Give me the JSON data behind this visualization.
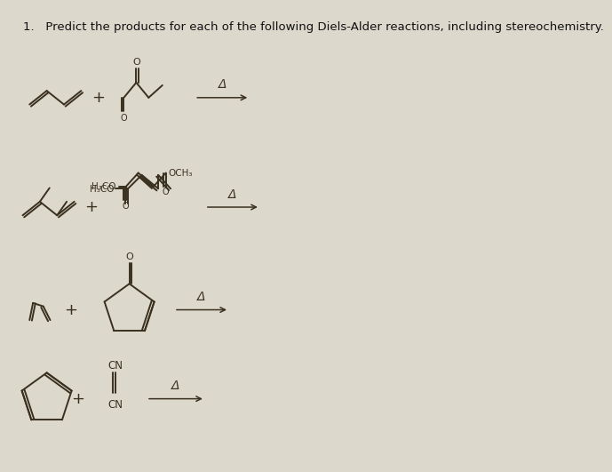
{
  "title": "1.   Predict the products for each of the following Diels-Alder reactions, including stereochemistry.",
  "bg_color": "#ddd8cc",
  "title_fontsize": 9.5,
  "title_color": "#111111",
  "line_color": "#3a3020",
  "lw": 1.4
}
